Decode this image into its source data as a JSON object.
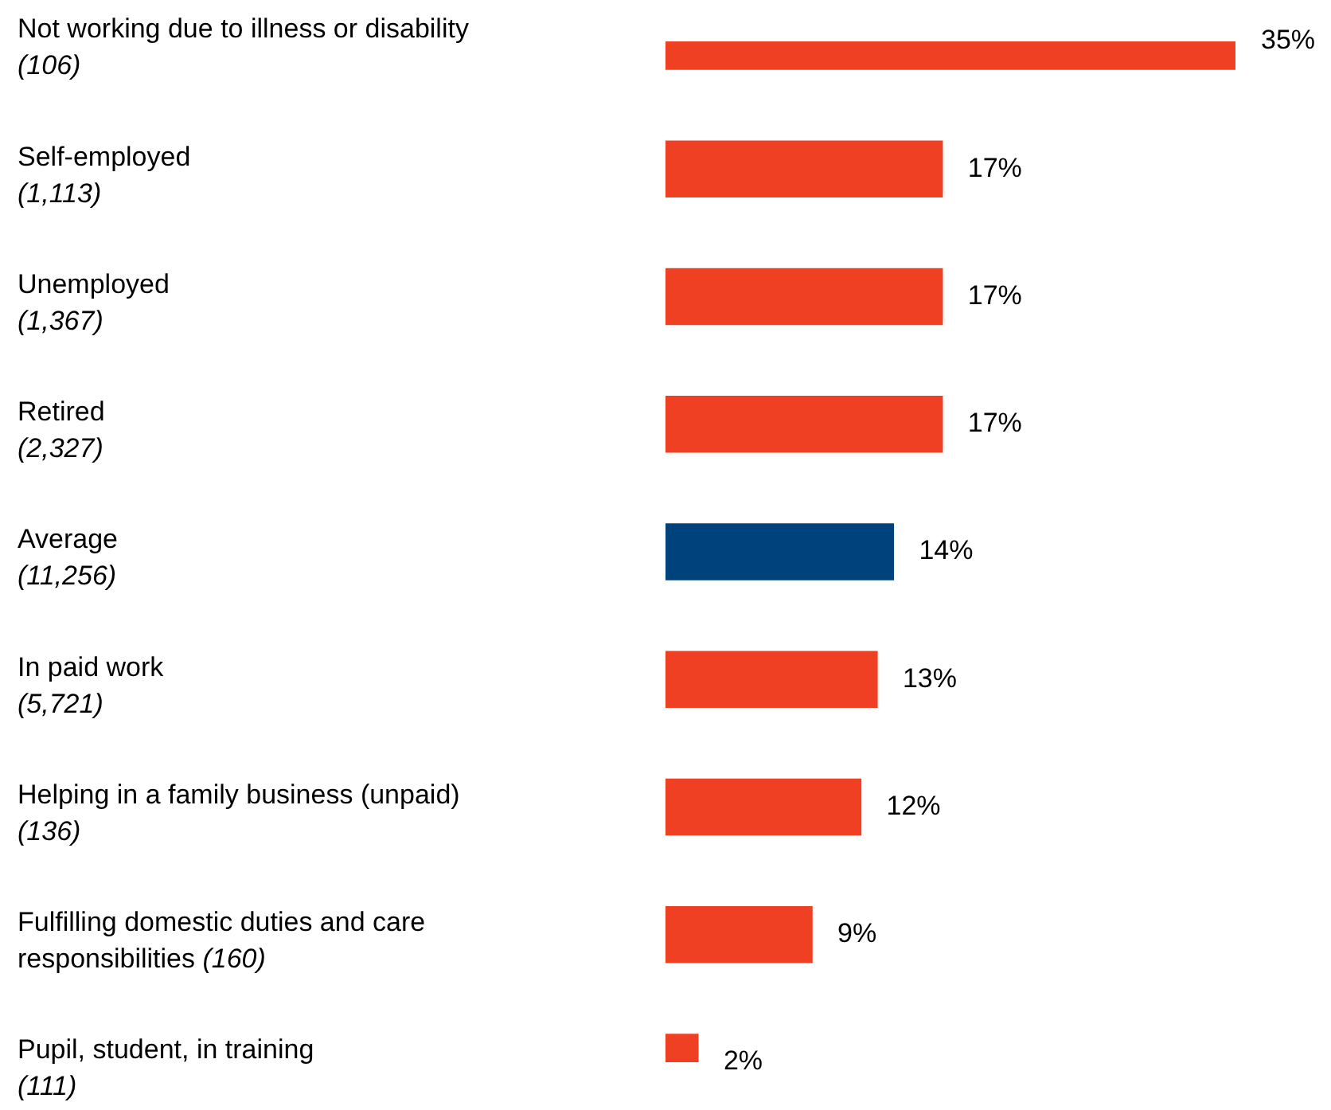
{
  "chart_data": {
    "type": "bar",
    "orientation": "horizontal",
    "categories": [
      "Not working due to illness or disability\n(106)",
      "Self-employed\n(1,113)",
      "Unemployed\n(1,367)",
      "Retired\n(2,327)",
      "Average\n(11,256)",
      "In paid work\n(5,721)",
      "Helping in a family business (unpaid)\n(136)",
      "Fulfilling domestic duties and care\nresponsibilities (160)",
      "Pupil, student, in training\n(111)"
    ],
    "values": [
      35,
      17,
      17,
      17,
      14,
      13,
      12,
      9,
      2
    ],
    "value_labels": [
      "35%",
      "17%",
      "17%",
      "17%",
      "14%",
      "13%",
      "12%",
      "9%",
      "2%"
    ],
    "colors": [
      "#f04024",
      "#f04024",
      "#f04024",
      "#f04024",
      "#00427c",
      "#f04024",
      "#f04024",
      "#f04024",
      "#f04024"
    ],
    "legend": false
  }
}
